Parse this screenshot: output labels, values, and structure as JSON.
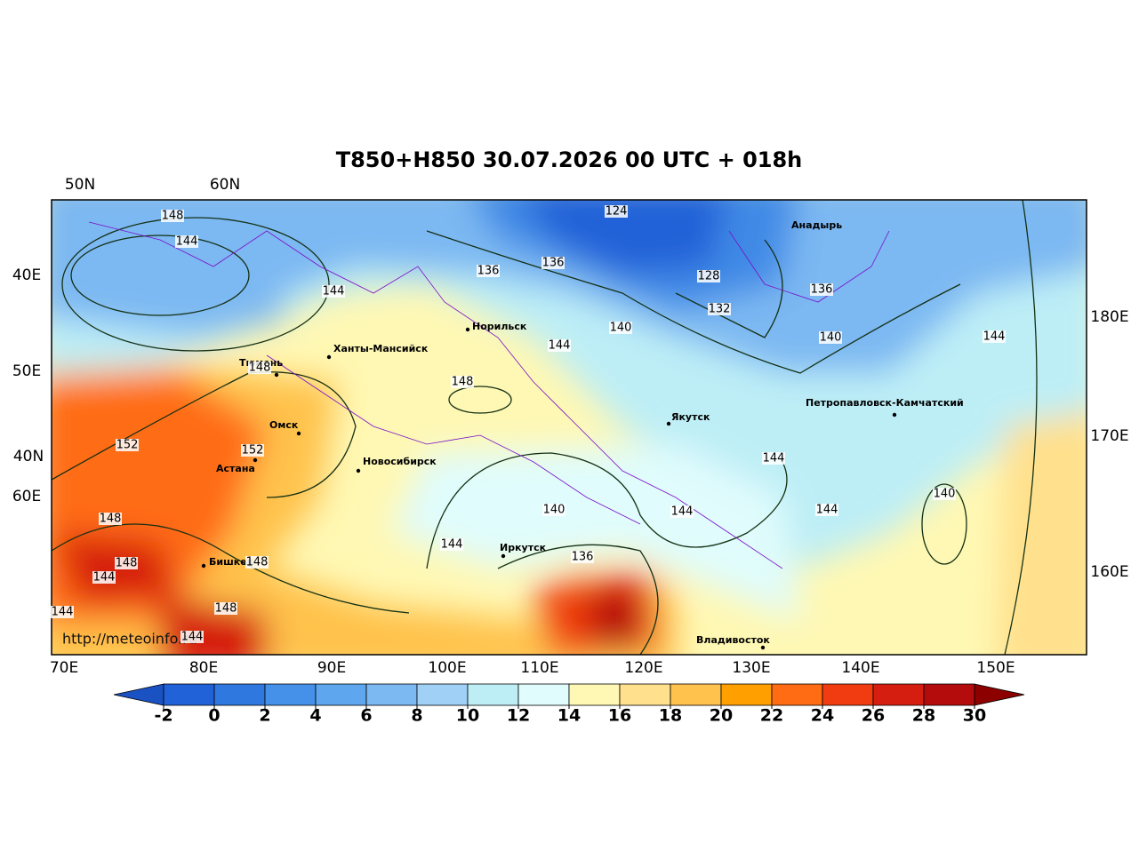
{
  "title": "T850+H850 30.07.2026 00 UTC + 018h",
  "url": "http://meteoinfo.ru",
  "top_labels": [
    "50N",
    "60N"
  ],
  "left_labels": [
    "40E",
    "50E",
    "40N",
    "60E"
  ],
  "right_labels": [
    "180E",
    "170E",
    "160E"
  ],
  "bottom_labels": [
    "70E",
    "80E",
    "90E",
    "100E",
    "110E",
    "120E",
    "130E",
    "140E",
    "150E"
  ],
  "cities": [
    "Тюмень",
    "Ханты-Мансийск",
    "Норильск",
    "Омск",
    "Астана",
    "Новосибирск",
    "Якутск",
    "Иркутск",
    "Бишкек",
    "Владивосток",
    "Анадырь",
    "Петропавловск-Камчатский"
  ],
  "contour_labels": [
    148,
    144,
    144,
    124,
    136,
    136,
    128,
    132,
    140,
    144,
    148,
    136,
    140,
    144,
    148,
    152,
    152,
    144,
    144,
    140,
    144,
    140,
    148,
    148,
    144,
    148,
    144,
    136,
    148,
    144,
    144
  ],
  "colorbar": {
    "ticks": [
      -2,
      0,
      2,
      4,
      6,
      8,
      10,
      12,
      14,
      16,
      18,
      20,
      22,
      24,
      26,
      28,
      30
    ],
    "colors": [
      "#2262d8",
      "#2f78e0",
      "#4590e8",
      "#5ea6ee",
      "#7cb8f2",
      "#a0d0f6",
      "#bdeef6",
      "#e0fcfc",
      "#fff8b4",
      "#ffe08c",
      "#ffc24c",
      "#ffa000",
      "#ff6c14",
      "#f03c10",
      "#d61e10",
      "#b40c0c"
    ],
    "under_color": "#1a52c4",
    "over_color": "#8c0000"
  }
}
